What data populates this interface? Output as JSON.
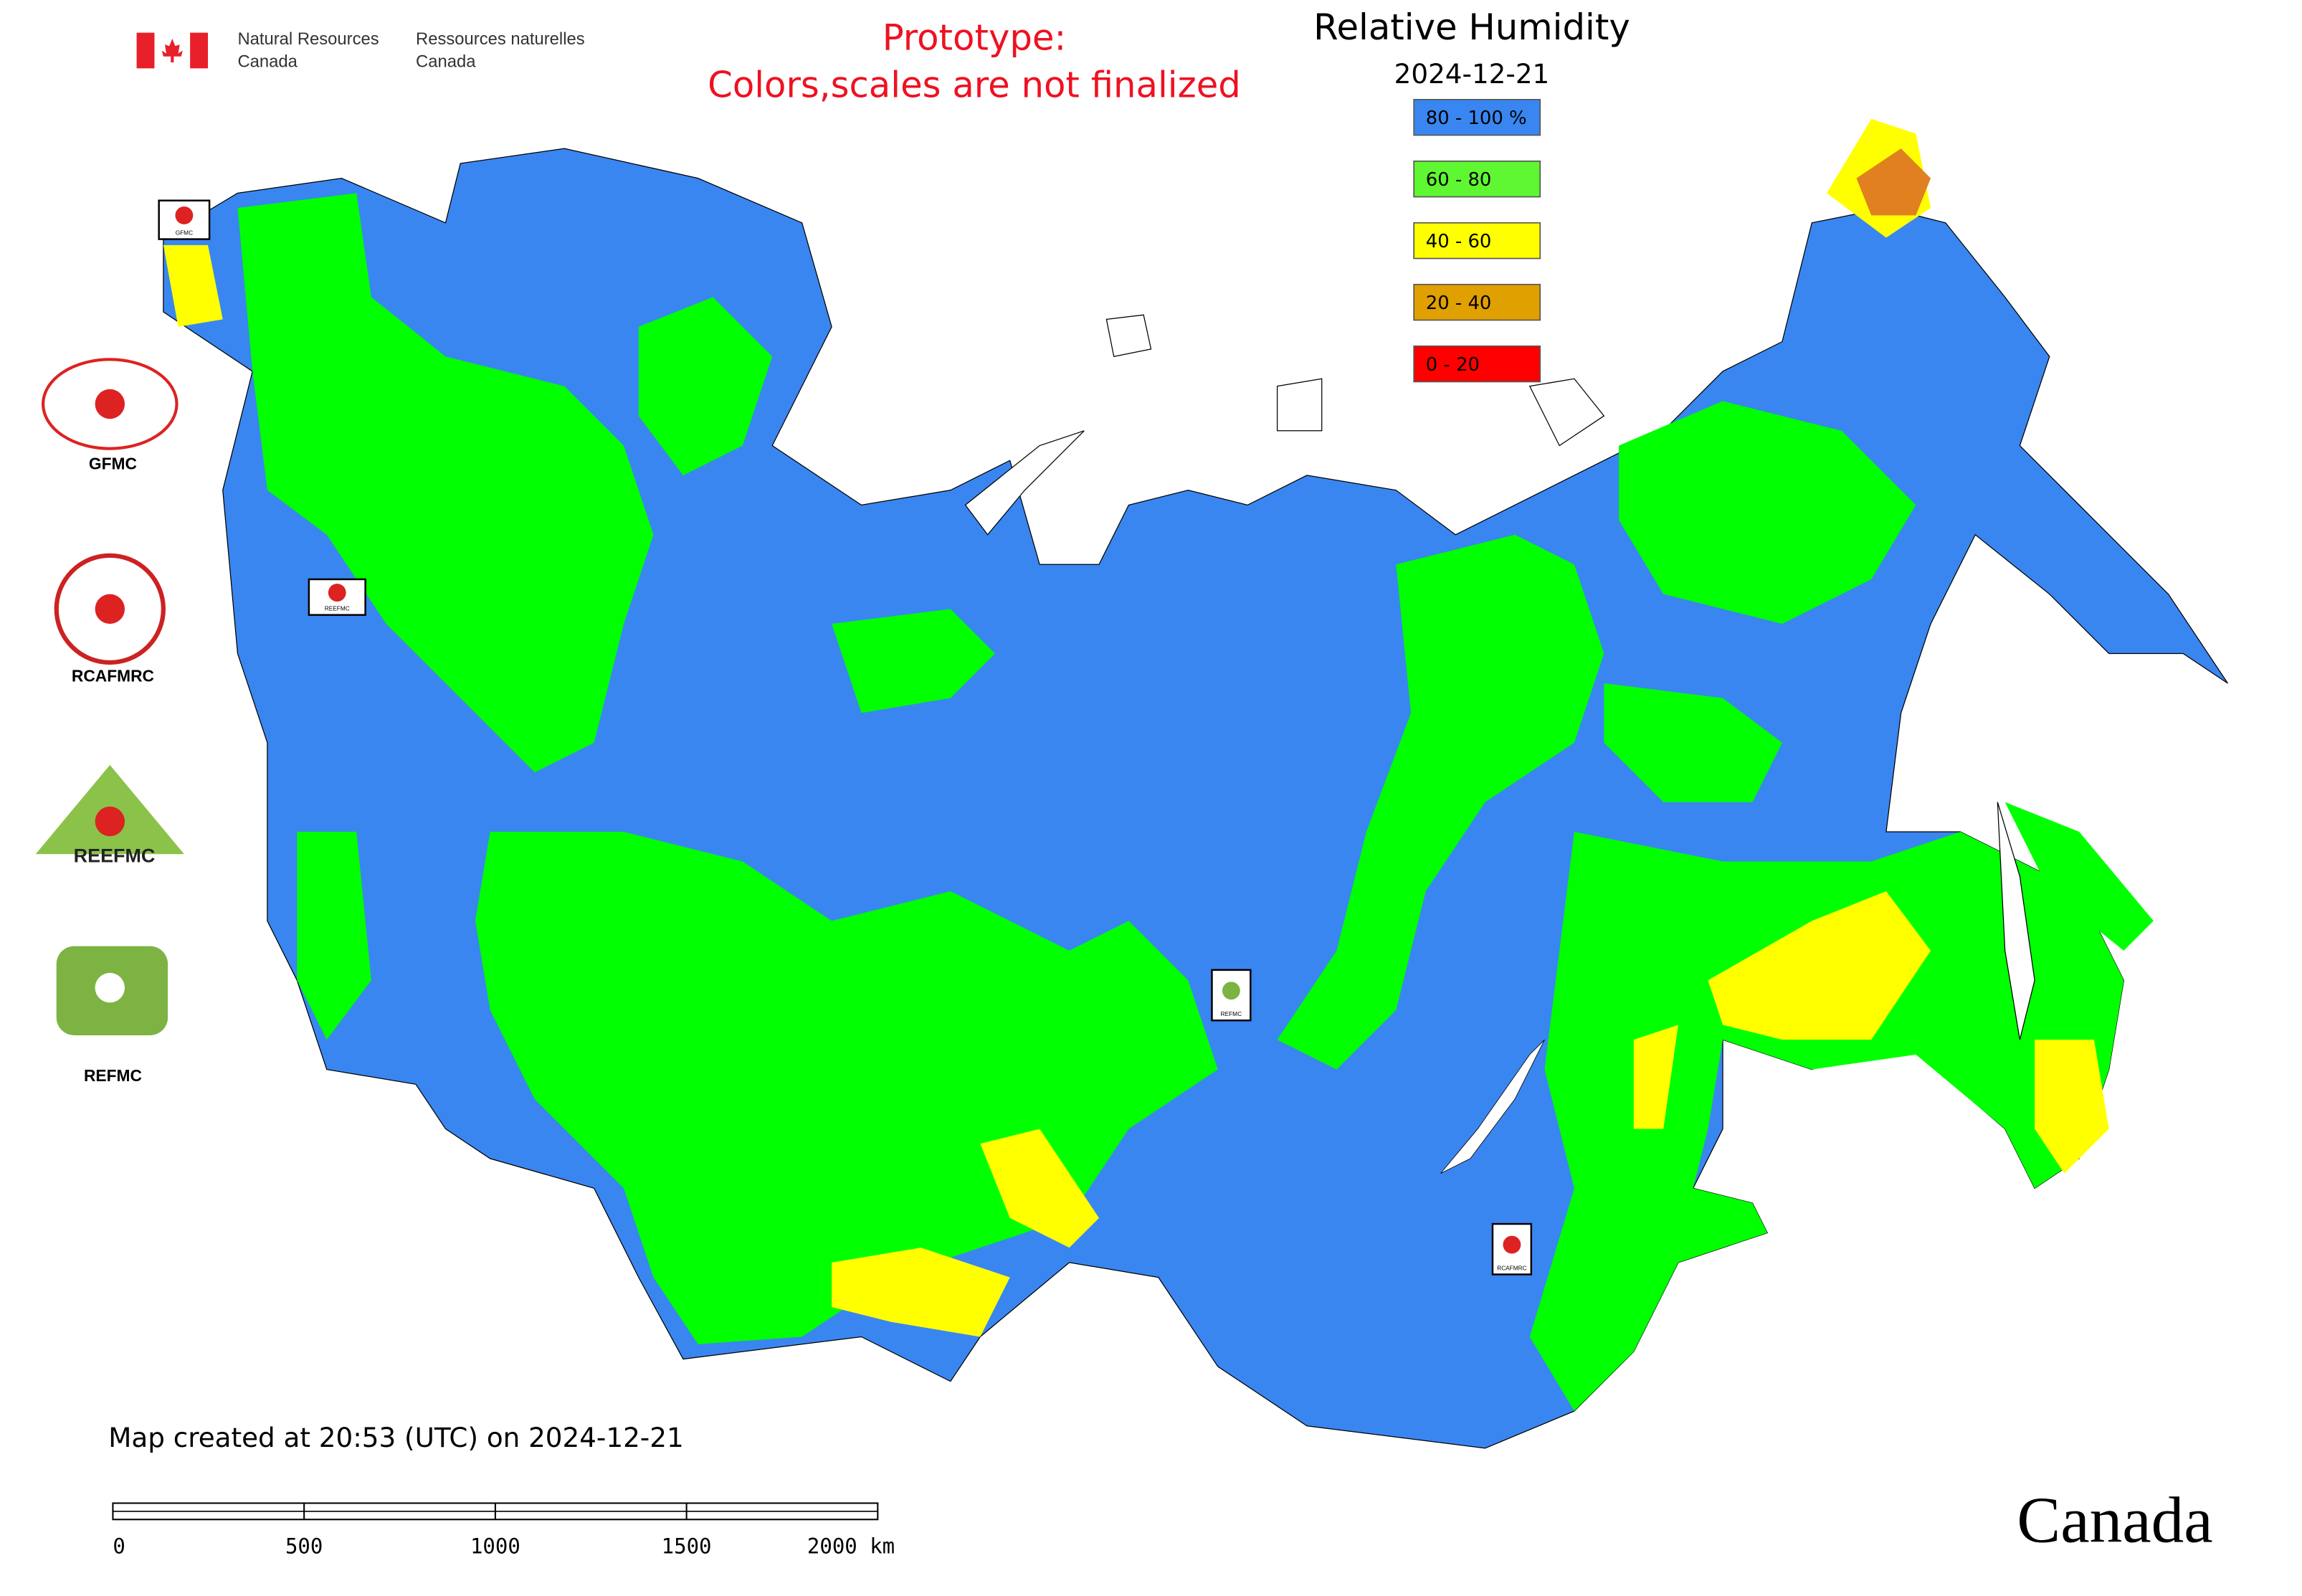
{
  "header": {
    "org_en_line1": "Natural Resources",
    "org_en_line2": "Canada",
    "org_fr_line1": "Ressources naturelles",
    "org_fr_line2": "Canada"
  },
  "notice": {
    "line1": "Prototype:",
    "line2": "Colors,scales are not finalized"
  },
  "legend": {
    "title": "Relative Humidity",
    "date": "2024-12-21",
    "items": [
      {
        "label": "80 - 100 %",
        "color": "#3a86f0"
      },
      {
        "label": "60 - 80",
        "color": "#5ef732"
      },
      {
        "label": "40 - 60",
        "color": "#ffff00"
      },
      {
        "label": "20 - 40",
        "color": "#e0a000"
      },
      {
        "label": "0 - 20",
        "color": "#ff0000"
      }
    ]
  },
  "logos": [
    "GFMC",
    "RCAFMRC",
    "REEFMC",
    "REFMC"
  ],
  "map_markers": [
    "GFMC",
    "REEFMC",
    "REFMC",
    "RCAFMRC"
  ],
  "footer": {
    "created": "Map created at 20:53 (UTC) on 2024-12-21",
    "scale_labels": [
      "0",
      "500",
      "1000",
      "1500",
      "2000 km"
    ],
    "wordmark": "Canada"
  }
}
